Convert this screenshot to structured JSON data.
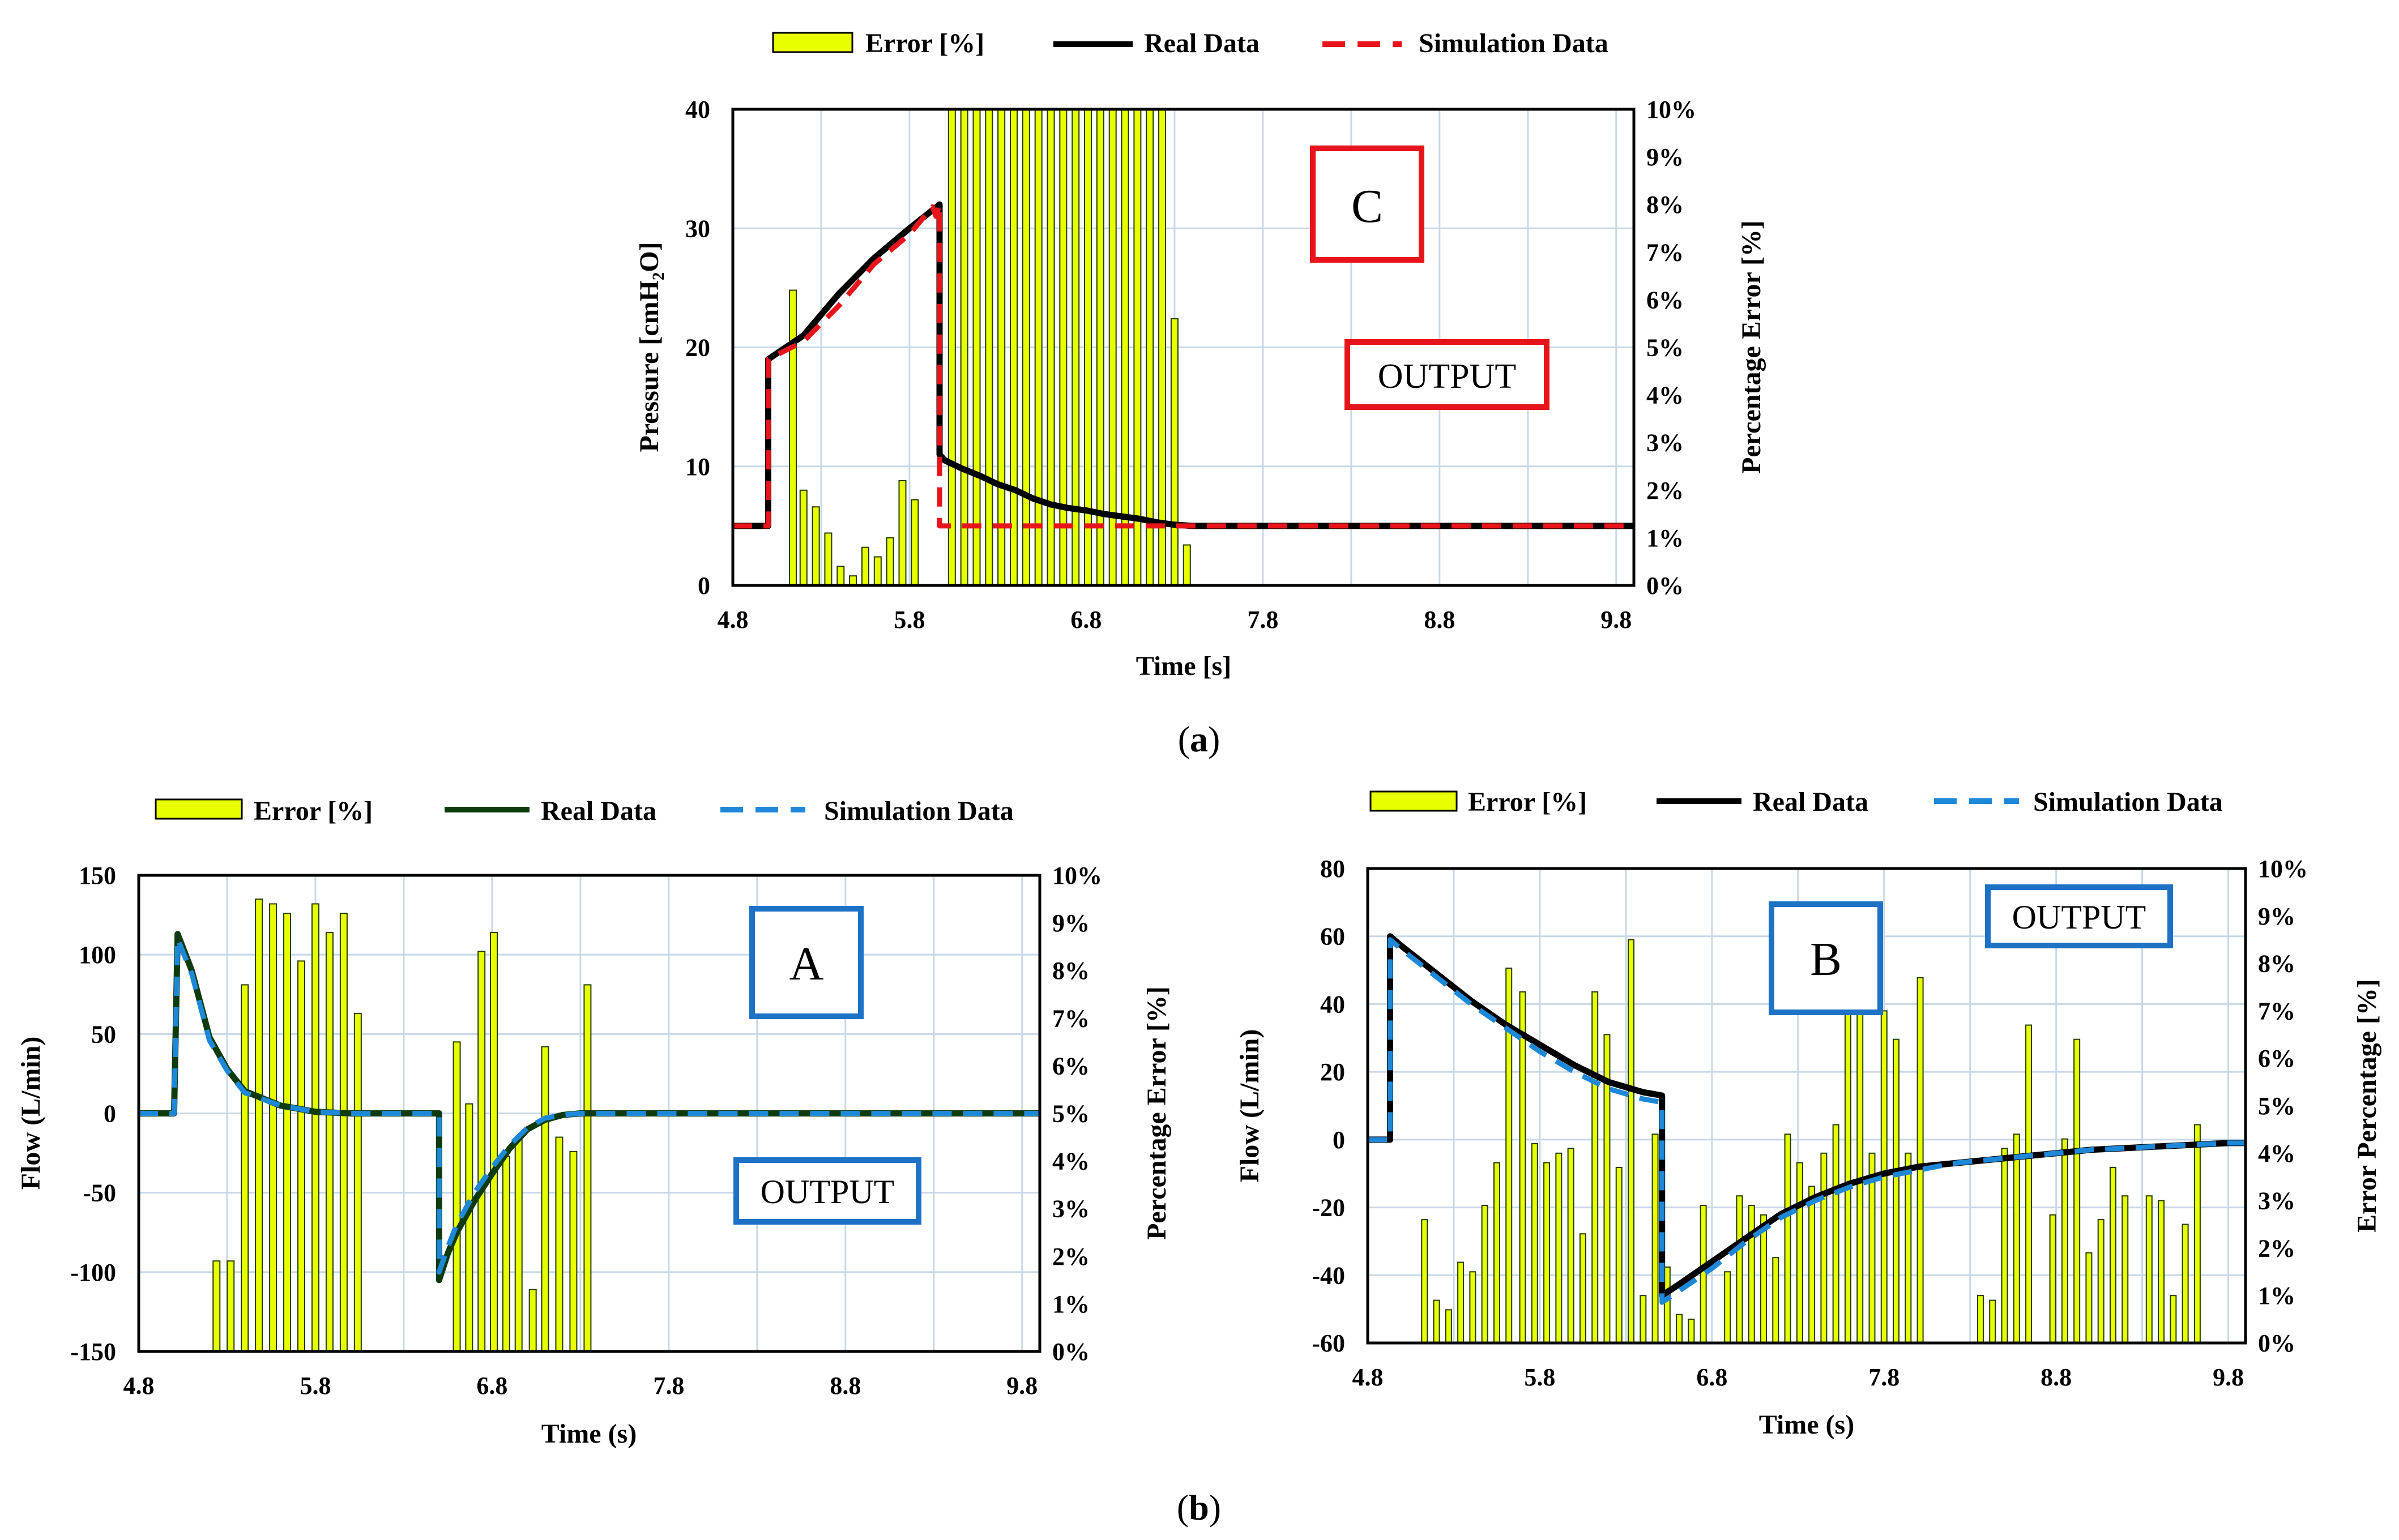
{
  "captions": {
    "a": "a",
    "b": "b"
  },
  "chart_data": [
    {
      "id": "C",
      "type": "bar+line",
      "box_label": "C",
      "box_color": "#e8141b",
      "output_label": "OUTPUT",
      "xlabel": "Time [s]",
      "ylabel": "Pressure [cmH₂O]",
      "y2label": "Percentage Error [%]",
      "xlim": [
        4.8,
        9.9
      ],
      "ylim": [
        0,
        40
      ],
      "y2lim": [
        0,
        10
      ],
      "xticks": [
        4.8,
        5.8,
        6.8,
        7.8,
        8.8,
        9.8
      ],
      "xtick_labels": [
        "4.8",
        "5.8",
        "6.8",
        "7.8",
        "8.8",
        "9.8"
      ],
      "yticks": [
        0,
        10,
        20,
        30,
        40
      ],
      "ytick_labels": [
        "0",
        "10",
        "20",
        "30",
        "40"
      ],
      "y2ticks": [
        0,
        1,
        2,
        3,
        4,
        5,
        6,
        7,
        8,
        9,
        10
      ],
      "y2tick_labels": [
        "0%",
        "1%",
        "2%",
        "3%",
        "4%",
        "5%",
        "6%",
        "7%",
        "8%",
        "9%",
        "10%"
      ],
      "legend": {
        "error": "Error [%]",
        "real": "Real Data",
        "sim": "Simulation Data"
      },
      "legend_position": "top",
      "real_color": "#000000",
      "sim_color": "#e8141b",
      "bar_color": "#e8ff00",
      "error_bars": {
        "x": [
          5.14,
          5.2,
          5.27,
          5.34,
          5.41,
          5.48,
          5.55,
          5.62,
          5.69,
          5.76,
          5.83,
          5.9,
          5.97,
          6.04,
          6.11,
          6.18,
          6.25,
          6.32,
          6.39,
          6.46,
          6.53,
          6.6,
          6.67,
          6.74,
          6.81,
          6.88,
          6.95,
          7.02,
          7.09,
          7.16,
          7.23,
          7.3,
          7.37
        ],
        "values": [
          6.2,
          2.0,
          1.65,
          1.1,
          0.4,
          0.2,
          0.8,
          0.6,
          1.0,
          2.2,
          1.8,
          0,
          0,
          10,
          10,
          10,
          10,
          10,
          10,
          10,
          10,
          10,
          10,
          10,
          10,
          10,
          10,
          10,
          10,
          10,
          10,
          5.6,
          0.85
        ]
      },
      "series": [
        {
          "name": "Real Data",
          "x": [
            4.8,
            5.0,
            5.0,
            5.2,
            5.4,
            5.6,
            5.8,
            5.97,
            5.97,
            6.0,
            6.1,
            6.2,
            6.3,
            6.4,
            6.5,
            6.6,
            6.7,
            6.8,
            6.9,
            7.0,
            7.1,
            7.2,
            7.3,
            7.4,
            9.9
          ],
          "y": [
            5,
            5,
            19,
            21,
            24.5,
            27.5,
            30,
            32,
            11,
            10.5,
            9.8,
            9.2,
            8.5,
            8.0,
            7.3,
            6.8,
            6.5,
            6.3,
            6.0,
            5.8,
            5.6,
            5.3,
            5.1,
            5.0,
            5.0
          ]
        },
        {
          "name": "Simulation Data",
          "x": [
            4.8,
            5.0,
            5.0,
            5.2,
            5.4,
            5.6,
            5.8,
            5.93,
            5.95,
            5.97,
            5.97,
            6.0,
            9.9
          ],
          "y": [
            5,
            5,
            19,
            20.5,
            23.5,
            27,
            29.5,
            31.8,
            31,
            32,
            5,
            5,
            5
          ]
        }
      ]
    },
    {
      "id": "A",
      "type": "bar+line",
      "box_label": "A",
      "box_color": "#1e72c6",
      "output_label": "OUTPUT",
      "xlabel": "Time (s)",
      "ylabel": "Flow  (L/min)",
      "y2label": "Percentage Error [%]",
      "xlim": [
        4.8,
        9.9
      ],
      "ylim": [
        -150,
        150
      ],
      "y2lim": [
        0,
        10
      ],
      "xticks": [
        4.8,
        5.8,
        6.8,
        7.8,
        8.8,
        9.8
      ],
      "xtick_labels": [
        "4.8",
        "5.8",
        "6.8",
        "7.8",
        "8.8",
        "9.8"
      ],
      "yticks": [
        -150,
        -100,
        -50,
        0,
        50,
        100,
        150
      ],
      "ytick_labels": [
        "-150",
        "-100",
        "-50",
        "0",
        "50",
        "100",
        "150"
      ],
      "y2ticks": [
        0,
        1,
        2,
        3,
        4,
        5,
        6,
        7,
        8,
        9,
        10
      ],
      "y2tick_labels": [
        "0%",
        "1%",
        "2%",
        "3%",
        "4%",
        "5%",
        "6%",
        "7%",
        "8%",
        "9%",
        "10%"
      ],
      "legend": {
        "error": "Error [%]",
        "real": "Real Data",
        "sim": "Simulation Data"
      },
      "legend_position": "top",
      "real_color": "#0d3b0d",
      "sim_color": "#1e88d8",
      "bar_color": "#e8ff00",
      "error_bars": {
        "x": [
          5.24,
          5.32,
          5.4,
          5.48,
          5.56,
          5.64,
          5.72,
          5.8,
          5.88,
          5.96,
          6.04,
          6.12,
          6.6,
          6.67,
          6.74,
          6.81,
          6.88,
          6.95,
          7.03,
          7.1,
          7.18,
          7.26,
          7.34
        ],
        "values": [
          1.9,
          1.9,
          7.7,
          9.5,
          9.4,
          9.2,
          8.2,
          9.4,
          8.8,
          9.2,
          7.1,
          0,
          6.5,
          5.2,
          8.4,
          8.8,
          4.1,
          4.5,
          1.3,
          6.4,
          4.5,
          4.2,
          7.7
        ]
      },
      "series": [
        {
          "name": "Real Data",
          "x": [
            4.8,
            5.0,
            5.02,
            5.1,
            5.2,
            5.3,
            5.4,
            5.6,
            5.8,
            6.0,
            6.2,
            6.4,
            6.5,
            6.5,
            6.55,
            6.6,
            6.7,
            6.8,
            6.9,
            7.0,
            7.1,
            7.2,
            7.3,
            7.4,
            7.5,
            9.9
          ],
          "y": [
            0,
            0,
            113,
            90,
            48,
            28,
            14,
            5,
            1,
            0,
            0,
            0,
            0,
            -105,
            -88,
            -75,
            -55,
            -38,
            -22,
            -10,
            -4,
            -1,
            0,
            0,
            0,
            0
          ]
        },
        {
          "name": "Simulation Data",
          "x": [
            4.8,
            5.0,
            5.02,
            5.1,
            5.2,
            5.3,
            5.4,
            5.6,
            5.8,
            6.0,
            6.2,
            6.4,
            6.5,
            6.5,
            6.55,
            6.6,
            6.7,
            6.8,
            6.9,
            7.0,
            7.1,
            7.2,
            7.3,
            7.4,
            7.5,
            9.9
          ],
          "y": [
            0,
            0,
            110,
            88,
            46,
            27,
            13,
            5,
            1,
            0,
            0,
            0,
            0,
            -100,
            -84,
            -70,
            -50,
            -34,
            -20,
            -9,
            -3,
            -1,
            0,
            0,
            0,
            0
          ]
        }
      ]
    },
    {
      "id": "B",
      "type": "bar+line",
      "box_label": "B",
      "box_color": "#1e72c6",
      "output_label": "OUTPUT",
      "xlabel": "Time (s)",
      "ylabel": "Flow  (L/min)",
      "y2label": "Error Percentage [%]",
      "xlim": [
        4.8,
        9.9
      ],
      "ylim": [
        -60,
        80
      ],
      "y2lim": [
        0,
        10
      ],
      "xticks": [
        4.8,
        5.8,
        6.8,
        7.8,
        8.8,
        9.8
      ],
      "xtick_labels": [
        "4.8",
        "5.8",
        "6.8",
        "7.8",
        "8.8",
        "9.8"
      ],
      "yticks": [
        -60,
        -40,
        -20,
        0,
        20,
        40,
        60,
        80
      ],
      "ytick_labels": [
        "-60",
        "-40",
        "-20",
        "0",
        "20",
        "40",
        "60",
        "80"
      ],
      "y2ticks": [
        0,
        1,
        2,
        3,
        4,
        5,
        6,
        7,
        8,
        9,
        10
      ],
      "y2tick_labels": [
        "0%",
        "1%",
        "2%",
        "3%",
        "4%",
        "5%",
        "6%",
        "7%",
        "8%",
        "9%",
        "10%"
      ],
      "legend": {
        "error": "Error [%]",
        "real": "Real Data",
        "sim": "Simulation Data"
      },
      "legend_position": "top",
      "real_color": "#000000",
      "sim_color": "#1e88d8",
      "bar_color": "#e8ff00",
      "error_bars": {
        "x": [
          5.13,
          5.2,
          5.27,
          5.34,
          5.41,
          5.48,
          5.55,
          5.62,
          5.7,
          5.77,
          5.84,
          5.91,
          5.98,
          6.05,
          6.12,
          6.19,
          6.26,
          6.33,
          6.4,
          6.47,
          6.54,
          6.61,
          6.68,
          6.75,
          6.82,
          6.89,
          6.96,
          7.03,
          7.1,
          7.17,
          7.24,
          7.31,
          7.38,
          7.45,
          7.52,
          7.59,
          7.66,
          7.73,
          7.8,
          7.87,
          7.94,
          8.01,
          8.08,
          8.15,
          8.22,
          8.29,
          8.36,
          8.43,
          8.5,
          8.57,
          8.64,
          8.71,
          8.78,
          8.85,
          8.92,
          8.99,
          9.06,
          9.13,
          9.2,
          9.27,
          9.34,
          9.41,
          9.48,
          9.55,
          9.62,
          9.69,
          9.76,
          9.83,
          9.9
        ],
        "values": [
          2.6,
          0.9,
          0.7,
          1.7,
          1.5,
          2.9,
          3.8,
          7.9,
          7.4,
          4.2,
          3.8,
          4.0,
          4.1,
          2.3,
          7.4,
          6.5,
          3.7,
          8.5,
          1.0,
          4.4,
          1.6,
          0.6,
          0.5,
          2.9,
          0,
          1.5,
          3.1,
          2.9,
          2.7,
          1.8,
          4.4,
          3.8,
          3.3,
          4.0,
          4.6,
          8.0,
          7.2,
          4.0,
          7.0,
          6.4,
          4.0,
          7.7,
          0,
          0,
          0,
          0,
          1.0,
          0.9,
          4.1,
          4.4,
          6.7,
          0,
          2.7,
          4.3,
          6.4,
          1.9,
          2.6,
          3.7,
          3.1,
          0,
          3.1,
          3.0,
          1.0,
          2.5,
          4.6,
          0,
          0,
          0,
          0
        ]
      },
      "series": [
        {
          "name": "Real Data",
          "x": [
            4.8,
            4.93,
            4.93,
            5.0,
            5.2,
            5.4,
            5.6,
            5.8,
            6.0,
            6.2,
            6.4,
            6.51,
            6.51,
            6.6,
            6.8,
            7.0,
            7.2,
            7.4,
            7.6,
            7.8,
            8.0,
            8.2,
            8.4,
            8.6,
            8.8,
            9.0,
            9.2,
            9.4,
            9.6,
            9.8,
            9.9
          ],
          "y": [
            0,
            0,
            60,
            57,
            49,
            41,
            34,
            28,
            22,
            17,
            14,
            13,
            -46,
            -43,
            -36,
            -29,
            -22,
            -17,
            -13,
            -10,
            -8,
            -7,
            -6,
            -5,
            -4,
            -3,
            -2.5,
            -2,
            -1.5,
            -1,
            -1
          ]
        },
        {
          "name": "Simulation Data",
          "x": [
            4.8,
            4.93,
            4.93,
            5.0,
            5.2,
            5.4,
            5.6,
            5.8,
            6.0,
            6.2,
            6.4,
            6.51,
            6.51,
            6.6,
            6.8,
            7.0,
            7.2,
            7.4,
            7.6,
            7.8,
            8.0,
            8.2,
            8.4,
            8.6,
            8.8,
            9.0,
            9.2,
            9.4,
            9.6,
            9.8,
            9.9
          ],
          "y": [
            0,
            0,
            59,
            56,
            48,
            40,
            33,
            26,
            20,
            15,
            12,
            11,
            -48,
            -45,
            -38,
            -30,
            -23,
            -18,
            -14,
            -11,
            -9,
            -7,
            -6,
            -5,
            -4,
            -3,
            -2.5,
            -2,
            -1.5,
            -1,
            -1
          ]
        }
      ]
    }
  ]
}
